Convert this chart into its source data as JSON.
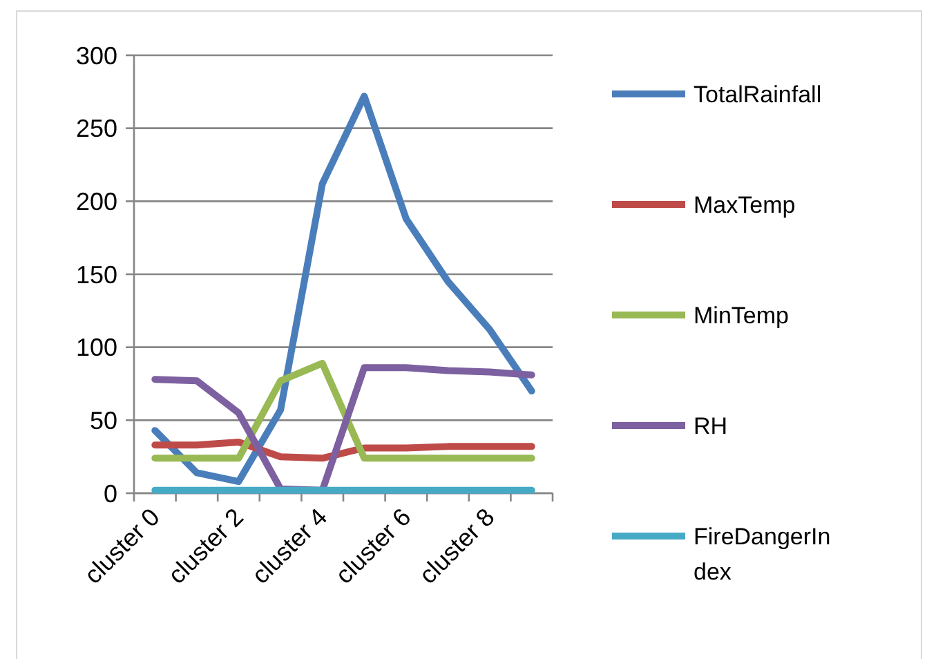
{
  "chart_data": {
    "type": "line",
    "categories": [
      "cluster 0",
      null,
      "cluster 2",
      null,
      "cluster 4",
      null,
      "cluster 6",
      null,
      "cluster 8",
      null
    ],
    "series": [
      {
        "name": "TotalRainfall",
        "color": "#4a7ebb",
        "values": [
          43,
          14,
          8,
          57,
          212,
          272,
          188,
          145,
          112,
          70
        ]
      },
      {
        "name": "MaxTemp",
        "color": "#be4b48",
        "values": [
          33,
          33,
          35,
          25,
          24,
          31,
          31,
          32,
          32,
          32
        ]
      },
      {
        "name": "MinTemp",
        "color": "#98b954",
        "values": [
          24,
          24,
          24,
          77,
          89,
          24,
          24,
          24,
          24,
          24
        ]
      },
      {
        "name": "RH",
        "color": "#7d60a0",
        "values": [
          78,
          77,
          55,
          3,
          2,
          86,
          86,
          84,
          83,
          81
        ]
      },
      {
        "name": "FireDangerIndex",
        "color": "#46aac5",
        "values": [
          2,
          2,
          2,
          2,
          2,
          2,
          2,
          2,
          2,
          2
        ]
      }
    ],
    "ylim": [
      0,
      300
    ],
    "yticks": [
      0,
      50,
      100,
      150,
      200,
      250,
      300
    ],
    "grid": "y",
    "legend": "right",
    "marker": "none",
    "line_style": "solid"
  }
}
